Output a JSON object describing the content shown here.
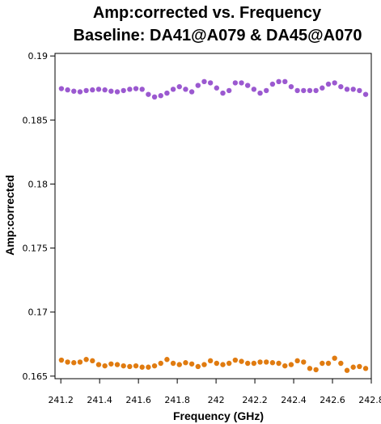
{
  "chart_data": {
    "type": "scatter",
    "title": "Amp:corrected vs. Frequency",
    "subtitle": "Baseline: DA41@A079 & DA45@A070",
    "xlabel": "Frequency (GHz)",
    "ylabel": "Amp:corrected",
    "xlim": [
      241.17,
      242.8
    ],
    "ylim": [
      0.1648,
      0.1902
    ],
    "xticks": [
      241.2,
      241.4,
      241.6,
      241.8,
      242.0,
      242.2,
      242.4,
      242.6,
      242.8
    ],
    "xtick_labels": [
      "241.2",
      "241.4",
      "241.6",
      "241.8",
      "242",
      "242.2",
      "242.4",
      "242.6",
      "242.8"
    ],
    "yticks": [
      0.165,
      0.17,
      0.175,
      0.18,
      0.185,
      0.19
    ],
    "ytick_labels": [
      "0.165",
      "0.17",
      "0.175",
      "0.18",
      "0.185",
      "0.19"
    ],
    "grid": false,
    "legend": "none",
    "series": [
      {
        "color": "#9b59d0",
        "x": [
          241.203,
          241.235,
          241.267,
          241.299,
          241.331,
          241.363,
          241.395,
          241.427,
          241.459,
          241.491,
          241.523,
          241.555,
          241.587,
          241.619,
          241.651,
          241.683,
          241.715,
          241.747,
          241.779,
          241.811,
          241.843,
          241.875,
          241.907,
          241.939,
          241.971,
          242.003,
          242.035,
          242.067,
          242.099,
          242.131,
          242.163,
          242.195,
          242.227,
          242.259,
          242.291,
          242.323,
          242.355,
          242.387,
          242.419,
          242.451,
          242.483,
          242.515,
          242.547,
          242.579,
          242.611,
          242.643,
          242.675,
          242.707,
          242.739,
          242.771
        ],
        "y": [
          0.18745,
          0.18735,
          0.18725,
          0.1872,
          0.1873,
          0.18735,
          0.1874,
          0.18735,
          0.18725,
          0.1872,
          0.1873,
          0.1874,
          0.18745,
          0.1874,
          0.187,
          0.1868,
          0.1869,
          0.1871,
          0.1874,
          0.1876,
          0.1874,
          0.1872,
          0.1877,
          0.188,
          0.1879,
          0.1875,
          0.1871,
          0.1873,
          0.1879,
          0.1879,
          0.1877,
          0.1874,
          0.1871,
          0.1873,
          0.1878,
          0.188,
          0.188,
          0.1876,
          0.1873,
          0.1873,
          0.1873,
          0.1873,
          0.1875,
          0.1878,
          0.1879,
          0.1876,
          0.1874,
          0.1874,
          0.1873,
          0.187
        ]
      },
      {
        "color": "#e07b10",
        "x": [
          241.203,
          241.235,
          241.267,
          241.299,
          241.331,
          241.363,
          241.395,
          241.427,
          241.459,
          241.491,
          241.523,
          241.555,
          241.587,
          241.619,
          241.651,
          241.683,
          241.715,
          241.747,
          241.779,
          241.811,
          241.843,
          241.875,
          241.907,
          241.939,
          241.971,
          242.003,
          242.035,
          242.067,
          242.099,
          242.131,
          242.163,
          242.195,
          242.227,
          242.259,
          242.291,
          242.323,
          242.355,
          242.387,
          242.419,
          242.451,
          242.483,
          242.515,
          242.547,
          242.579,
          242.611,
          242.643,
          242.675,
          242.707,
          242.739,
          242.771
        ],
        "y": [
          0.16625,
          0.1661,
          0.16605,
          0.1661,
          0.1663,
          0.1662,
          0.1659,
          0.1658,
          0.16595,
          0.1659,
          0.1658,
          0.16575,
          0.1658,
          0.1657,
          0.1657,
          0.1658,
          0.166,
          0.1663,
          0.166,
          0.1659,
          0.16605,
          0.16595,
          0.16575,
          0.1659,
          0.1662,
          0.166,
          0.1659,
          0.166,
          0.16625,
          0.16615,
          0.166,
          0.166,
          0.1661,
          0.1661,
          0.16605,
          0.166,
          0.1658,
          0.1659,
          0.1662,
          0.1661,
          0.1656,
          0.1655,
          0.166,
          0.166,
          0.1664,
          0.166,
          0.16545,
          0.1657,
          0.16575,
          0.1656
        ]
      }
    ]
  }
}
